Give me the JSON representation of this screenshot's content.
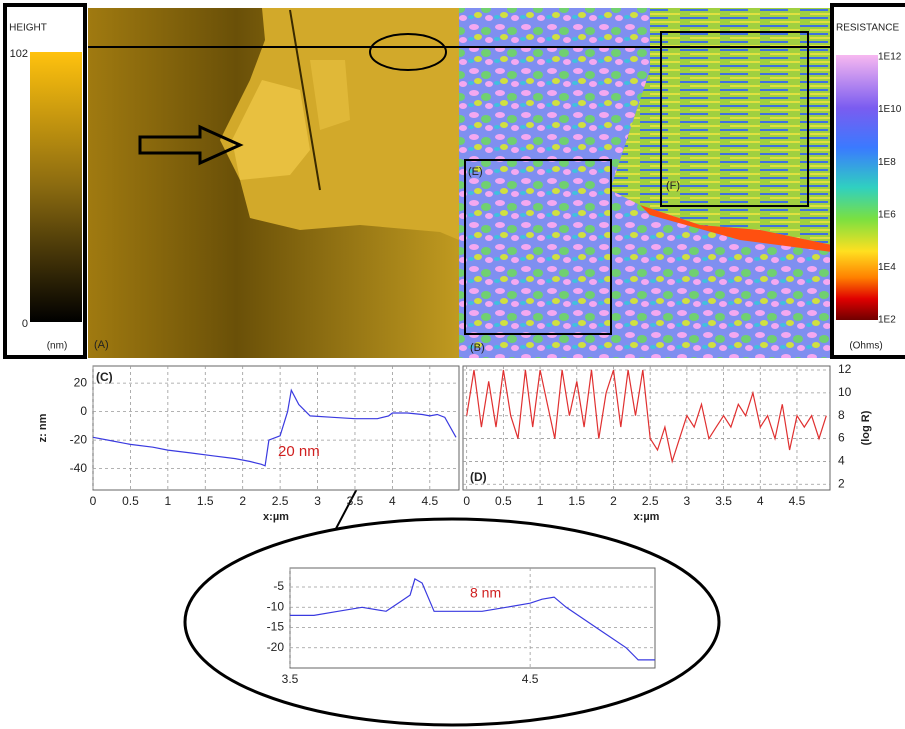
{
  "height_scale": {
    "title": "HEIGHT",
    "max": 102,
    "min": 0,
    "unit": "(nm)"
  },
  "resistance_scale": {
    "title": "RESISTANCE",
    "ticks": [
      "1E12",
      "1E10",
      "1E8",
      "1E6",
      "1E4",
      "1E2"
    ],
    "unit": "(Ohms)"
  },
  "panels": {
    "a": "(A)",
    "b": "(B)",
    "e": "(E)",
    "f": "(F)"
  },
  "chart_data": [
    {
      "type": "line",
      "label": "(C)",
      "y_label": "z: nm",
      "x_label": "x:µm",
      "annotation": "20 nm",
      "color": "#3a3ae0",
      "grid": true,
      "axis_side": "left",
      "x": [
        0,
        0.2,
        0.5,
        0.8,
        1,
        1.3,
        1.6,
        1.9,
        2.1,
        2.25,
        2.3,
        2.35,
        2.5,
        2.6,
        2.65,
        2.75,
        2.9,
        3.2,
        3.5,
        3.8,
        3.95,
        4.0,
        4.2,
        4.4,
        4.5,
        4.6,
        4.7,
        4.85
      ],
      "values": [
        -18,
        -20,
        -23,
        -25,
        -27,
        -29,
        -31,
        -33,
        -35,
        -37,
        -38,
        -20,
        -17,
        0,
        15,
        5,
        -3,
        -4,
        -5,
        -5,
        -3,
        -1,
        -1,
        -2,
        -3,
        -2,
        -4,
        -18
      ],
      "xlim": [
        0,
        4.89
      ],
      "ylim": [
        -55,
        32
      ],
      "xticks": [
        0,
        0.5,
        1,
        1.5,
        2,
        2.5,
        3,
        3.5,
        4,
        4.5
      ],
      "yticks": [
        20,
        0,
        -20,
        -40
      ]
    },
    {
      "type": "line",
      "label": "(D)",
      "y_label": "(log R)",
      "x_label": "x:µm",
      "color": "#e03030",
      "grid": true,
      "axis_side": "right",
      "x": [
        0,
        0.1,
        0.2,
        0.3,
        0.4,
        0.5,
        0.6,
        0.7,
        0.8,
        0.9,
        1,
        1.1,
        1.2,
        1.3,
        1.4,
        1.5,
        1.6,
        1.7,
        1.8,
        1.9,
        2,
        2.1,
        2.2,
        2.3,
        2.4,
        2.5,
        2.6,
        2.7,
        2.8,
        2.9,
        3,
        3.1,
        3.2,
        3.3,
        3.4,
        3.5,
        3.6,
        3.7,
        3.8,
        3.9,
        4,
        4.1,
        4.2,
        4.3,
        4.4,
        4.5,
        4.6,
        4.7,
        4.8,
        4.9
      ],
      "values": [
        8,
        12,
        7,
        11,
        7,
        12,
        8,
        6,
        12,
        7,
        12,
        9,
        6,
        12,
        8,
        11,
        7,
        12,
        6,
        10,
        12,
        7,
        12,
        8,
        12,
        6,
        5,
        7,
        4,
        6,
        8,
        7,
        9,
        6,
        7,
        8,
        7,
        9,
        8,
        10,
        7,
        8,
        6,
        9,
        5,
        8,
        7,
        8,
        6,
        8
      ],
      "xlim": [
        -0.05,
        4.95
      ],
      "ylim": [
        1.5,
        12.35
      ],
      "xticks": [
        0,
        0.5,
        1,
        1.5,
        2,
        2.5,
        3,
        3.5,
        4,
        4.5
      ],
      "yticks": [
        2,
        4,
        6,
        8,
        10,
        12
      ]
    },
    {
      "type": "line",
      "annotation": "8 nm",
      "color": "#3a3ae0",
      "grid": true,
      "axis_side": "left",
      "x": [
        3.5,
        3.6,
        3.7,
        3.8,
        3.9,
        3.95,
        4.0,
        4.02,
        4.05,
        4.1,
        4.2,
        4.3,
        4.4,
        4.5,
        4.55,
        4.6,
        4.65,
        4.7,
        4.8,
        4.9,
        4.95,
        5.02
      ],
      "values": [
        -12,
        -12,
        -11,
        -10,
        -11,
        -9,
        -7,
        -3,
        -4,
        -11,
        -11,
        -11,
        -10,
        -9,
        -8,
        -7.5,
        -10,
        -12,
        -16,
        -20,
        -23,
        -23
      ],
      "xlim": [
        3.5,
        5.02
      ],
      "ylim": [
        -25,
        -0.3
      ],
      "xticks": [
        3.5,
        4.5
      ],
      "yticks": [
        -5,
        -10,
        -15,
        -20
      ]
    }
  ]
}
